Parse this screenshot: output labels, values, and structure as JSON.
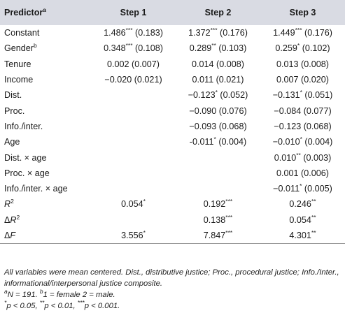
{
  "header": {
    "predictor": "Predictor",
    "predictor_sup": "a",
    "steps": [
      "Step 1",
      "Step 2",
      "Step 3"
    ]
  },
  "rows": [
    {
      "label": "Constant",
      "label_sup": "",
      "label_pre": "",
      "cells": [
        {
          "v": "1.486",
          "s": "***",
          "se": " (0.183)"
        },
        {
          "v": "1.372",
          "s": "***",
          "se": " (0.176)"
        },
        {
          "v": "1.449",
          "s": "***",
          "se": " (0.176)"
        }
      ]
    },
    {
      "label": "Gender",
      "label_sup": "b",
      "label_pre": "",
      "cells": [
        {
          "v": "0.348",
          "s": "***",
          "se": " (0.108)"
        },
        {
          "v": "0.289",
          "s": "**",
          "se": " (0.103)"
        },
        {
          "v": "0.259",
          "s": "*",
          "se": " (0.102)"
        }
      ]
    },
    {
      "label": "Tenure",
      "label_sup": "",
      "label_pre": "",
      "cells": [
        {
          "v": "0.002",
          "s": "",
          "se": " (0.007)"
        },
        {
          "v": "0.014",
          "s": "",
          "se": " (0.008)"
        },
        {
          "v": "0.013",
          "s": "",
          "se": " (0.008)"
        }
      ]
    },
    {
      "label": "Income",
      "label_sup": "",
      "label_pre": "",
      "cells": [
        {
          "v": "−0.020",
          "s": "",
          "se": " (0.021)"
        },
        {
          "v": "0.011",
          "s": "",
          "se": " (0.021)"
        },
        {
          "v": "0.007",
          "s": "",
          "se": " (0.020)"
        }
      ]
    },
    {
      "label": "Dist.",
      "label_sup": "",
      "label_pre": "",
      "cells": [
        {
          "v": "",
          "s": "",
          "se": ""
        },
        {
          "v": "−0.123",
          "s": "*",
          "se": " (0.052)"
        },
        {
          "v": "−0.131",
          "s": "*",
          "se": " (0.051)"
        }
      ]
    },
    {
      "label": "Proc.",
      "label_sup": "",
      "label_pre": "",
      "cells": [
        {
          "v": "",
          "s": "",
          "se": ""
        },
        {
          "v": "−0.090",
          "s": "",
          "se": " (0.076)"
        },
        {
          "v": "−0.084",
          "s": "",
          "se": " (0.077)"
        }
      ]
    },
    {
      "label": "Info./inter.",
      "label_sup": "",
      "label_pre": "",
      "cells": [
        {
          "v": "",
          "s": "",
          "se": ""
        },
        {
          "v": "−0.093",
          "s": "",
          "se": " (0.068)"
        },
        {
          "v": "−0.123",
          "s": "",
          "se": " (0.068)"
        }
      ]
    },
    {
      "label": "Age",
      "label_sup": "",
      "label_pre": "",
      "cells": [
        {
          "v": "",
          "s": "",
          "se": ""
        },
        {
          "v": "-0.011",
          "s": "*",
          "se": " (0.004)"
        },
        {
          "v": "−0.010",
          "s": "*",
          "se": " (0.004)"
        }
      ]
    },
    {
      "label": "Dist. × age",
      "label_sup": "",
      "label_pre": "",
      "cells": [
        {
          "v": "",
          "s": "",
          "se": ""
        },
        {
          "v": "",
          "s": "",
          "se": ""
        },
        {
          "v": "0.010",
          "s": "**",
          "se": " (0.003)"
        }
      ]
    },
    {
      "label": "Proc. × age",
      "label_sup": "",
      "label_pre": "",
      "cells": [
        {
          "v": "",
          "s": "",
          "se": ""
        },
        {
          "v": "",
          "s": "",
          "se": ""
        },
        {
          "v": "0.001",
          "s": "",
          "se": " (0.006)"
        }
      ]
    },
    {
      "label": "Info./inter. × age",
      "label_sup": "",
      "label_pre": "",
      "cells": [
        {
          "v": "",
          "s": "",
          "se": ""
        },
        {
          "v": "",
          "s": "",
          "se": ""
        },
        {
          "v": "−0.011",
          "s": "*",
          "se": " (0.005)"
        }
      ]
    },
    {
      "label": "R",
      "label_sup": "2",
      "label_pre": "",
      "italic": true,
      "cells": [
        {
          "v": "0.054",
          "s": "*",
          "se": ""
        },
        {
          "v": "0.192",
          "s": "***",
          "se": ""
        },
        {
          "v": "0.246",
          "s": "**",
          "se": ""
        }
      ]
    },
    {
      "label": "R",
      "label_sup": "2",
      "label_pre": "Δ",
      "italic": true,
      "cells": [
        {
          "v": "",
          "s": "",
          "se": ""
        },
        {
          "v": "0.138",
          "s": "***",
          "se": ""
        },
        {
          "v": "0.054",
          "s": "**",
          "se": ""
        }
      ]
    },
    {
      "label": "F",
      "label_sup": "",
      "label_pre": "Δ",
      "italic": true,
      "cells": [
        {
          "v": "3.556",
          "s": "*",
          "se": ""
        },
        {
          "v": "7.847",
          "s": "***",
          "se": ""
        },
        {
          "v": "4.301",
          "s": "**",
          "se": ""
        }
      ]
    }
  ],
  "notes": {
    "line1": "All variables were mean centered. Dist., distributive justice; Proc., procedural justice; Info./Inter., informational/interpersonal justice composite.",
    "line2_sup_a": "a",
    "line2_a": "N = 191. ",
    "line2_sup_b": "b",
    "line2_b": "1 = female 2 = male.",
    "line3_s1": "*",
    "line3_t1": "p < 0.05, ",
    "line3_s2": "**",
    "line3_t2": "p < 0.01, ",
    "line3_s3": "***",
    "line3_t3": "p < 0.001."
  }
}
